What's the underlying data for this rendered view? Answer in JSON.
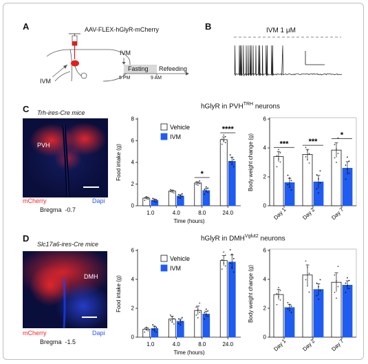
{
  "panel_labels": {
    "a": "A",
    "b": "B",
    "c": "C",
    "d": "D"
  },
  "panel_a": {
    "virus": "AAV-FLEX-hGlyR-mCherry",
    "ivm_injection": "IVM",
    "ivm_timeline": "IVM",
    "fasting": "Fasting",
    "refeeding": "Refeeding",
    "start_time": "5 PM",
    "end_time": "9 AM"
  },
  "panel_b": {
    "label": "IVM 1 μM"
  },
  "panel_c": {
    "mouse_line": "Trh-ires-Cre mice",
    "region": "PVH",
    "mcherry": "mCherry",
    "dapi": "Dapi",
    "bregma_label": "Bregma",
    "bregma_value": "-0.7",
    "header_main": "hGlyR in PVH",
    "header_sup": "TRH",
    "header_tail": " neurons"
  },
  "panel_d": {
    "mouse_line": "Slc17a6-ires-Cre mice",
    "region": "DMH",
    "mcherry": "mCherry",
    "dapi": "Dapi",
    "bregma_label": "Bregma",
    "bregma_value": "-1.5",
    "header_main": "hGlyR in DMH",
    "header_sup": "Vglut2",
    "header_tail": " neurons"
  },
  "colors": {
    "vehicle": "#ffffff",
    "ivm": "#1f5cf0",
    "mcherry": "#ff2a2a",
    "dapi": "#2850ff",
    "tissue_bg": "#0a0e3a"
  },
  "chart_data": [
    {
      "id": "c_food",
      "type": "bar",
      "categories": [
        "1.0",
        "4.0",
        "8.0",
        "24.0"
      ],
      "xlabel": "Time (hours)",
      "ylabel": "Food intake (g)",
      "ylim": [
        0,
        8
      ],
      "yticks": [
        "0",
        "2",
        "4",
        "6",
        "8"
      ],
      "series": [
        {
          "name": "Vehicle",
          "values": [
            0.7,
            1.35,
            2.1,
            6.1
          ],
          "err": [
            0.1,
            0.1,
            0.12,
            0.25
          ]
        },
        {
          "name": "IVM",
          "values": [
            0.5,
            0.9,
            1.4,
            4.1
          ],
          "err": [
            0.1,
            0.12,
            0.2,
            0.35
          ]
        }
      ],
      "significance": [
        {
          "category": "8.0",
          "mark": "*"
        },
        {
          "category": "24.0",
          "mark": "****"
        }
      ]
    },
    {
      "id": "c_weight",
      "type": "bar",
      "categories": [
        "Day 1",
        "Day 2",
        "Day 7"
      ],
      "ylabel": "Body weight change (g)",
      "ylim": [
        0,
        6
      ],
      "yticks": [
        "0",
        "2",
        "4",
        "6"
      ],
      "series": [
        {
          "name": "Vehicle",
          "values": [
            3.4,
            3.55,
            3.85
          ],
          "err": [
            0.35,
            0.35,
            0.5
          ]
        },
        {
          "name": "IVM",
          "values": [
            1.6,
            1.65,
            2.6
          ],
          "err": [
            0.3,
            0.45,
            0.45
          ]
        }
      ],
      "significance": [
        {
          "category": "Day 1",
          "mark": "***"
        },
        {
          "category": "Day 2",
          "mark": "***"
        },
        {
          "category": "Day 7",
          "mark": "*"
        }
      ]
    },
    {
      "id": "d_food",
      "type": "bar",
      "categories": [
        "1.0",
        "4.0",
        "8.0",
        "24.0"
      ],
      "xlabel": "Time (hours)",
      "ylabel": "Food intake (g)",
      "ylim": [
        0,
        6
      ],
      "yticks": [
        "0",
        "2",
        "4",
        "6"
      ],
      "series": [
        {
          "name": "Vehicle",
          "values": [
            0.55,
            1.25,
            1.85,
            5.3
          ],
          "err": [
            0.1,
            0.2,
            0.3,
            0.35
          ]
        },
        {
          "name": "IVM",
          "values": [
            0.6,
            1.1,
            1.6,
            5.2
          ],
          "err": [
            0.15,
            0.15,
            0.2,
            0.5
          ]
        }
      ],
      "significance": []
    },
    {
      "id": "d_weight",
      "type": "bar",
      "categories": [
        "Day 1",
        "Day 2",
        "Day 7"
      ],
      "ylabel": "Body weight change (g)",
      "ylim": [
        0,
        6
      ],
      "yticks": [
        "0",
        "2",
        "4",
        "6"
      ],
      "series": [
        {
          "name": "Vehicle",
          "values": [
            2.95,
            4.3,
            3.8
          ],
          "err": [
            0.35,
            0.7,
            0.65
          ]
        },
        {
          "name": "IVM",
          "values": [
            2.05,
            3.3,
            3.6
          ],
          "err": [
            0.2,
            0.4,
            0.3
          ]
        }
      ],
      "significance": []
    }
  ]
}
